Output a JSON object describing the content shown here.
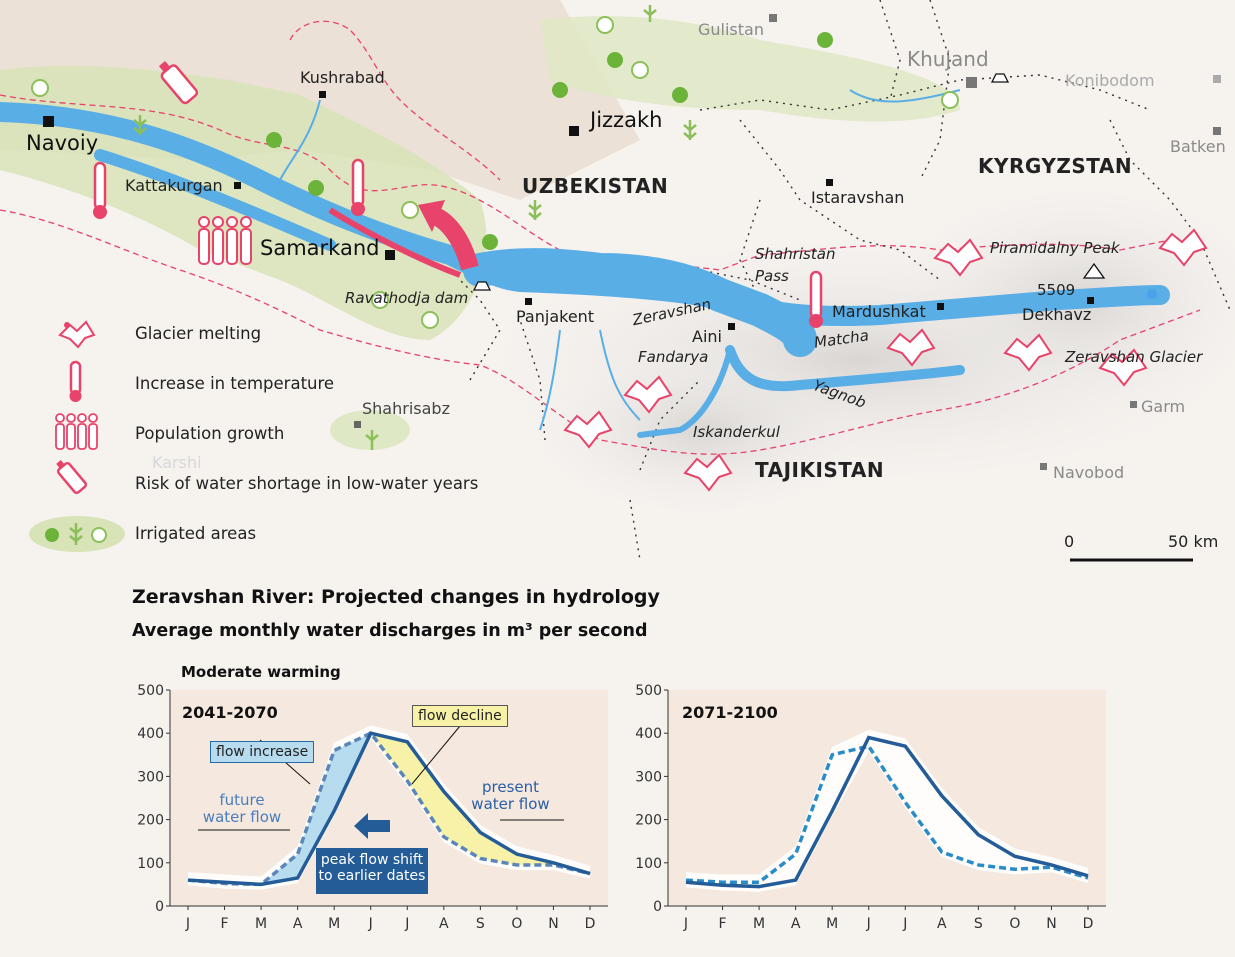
{
  "map": {
    "cities_large": {
      "navoiy": "Navoiy",
      "samarkand": "Samarkand",
      "jizzakh": "Jizzakh"
    },
    "cities": {
      "kushrabad": "Kushrabad",
      "kattakurgan": "Kattakurgan",
      "panjakent": "Panjakent",
      "aini": "Aini",
      "istaravshan": "Istaravshan",
      "mardushkat": "Mardushkat",
      "dekhavz": "Dekhavz",
      "shahrisabz": "Shahrisabz"
    },
    "cities_grey": {
      "gulistan": "Gulistan",
      "khujand": "Khujand",
      "konibodom": "Konibodom",
      "batken": "Batken",
      "garm": "Garm",
      "navobod": "Navobod",
      "karshi": "Karshi"
    },
    "countries": {
      "uzbekistan": "UZBEKISTAN",
      "kyrgyzstan": "KYRGYZSTAN",
      "tajikistan": "TAJIKISTAN"
    },
    "features": {
      "ravathodja_dam": "Ravathodja dam",
      "zeravshan": "Zeravshan",
      "shahristan": "Shahristan",
      "pass": "Pass",
      "fandarya": "Fandarya",
      "matcha": "Matcha",
      "yagnob": "Yagnob",
      "iskanderkul": "Iskanderkul",
      "piramidalny_peak": "Piramidalny Peak",
      "peak_height": "5509",
      "zeravshan_glacier": "Zeravshan Glacier"
    },
    "scale": {
      "zero": "0",
      "distance": "50 km"
    },
    "colors": {
      "river": "#5aaee6",
      "accent": "#e8436a",
      "irrigated": "#cfe0a4",
      "railway": "#333333"
    }
  },
  "legend": [
    {
      "icon": "glacier-icon",
      "label": "Glacier melting"
    },
    {
      "icon": "thermometer-icon",
      "label": "Increase in temperature"
    },
    {
      "icon": "population-icon",
      "label": "Population growth"
    },
    {
      "icon": "water-bottle-icon",
      "label": "Risk of water shortage in low-water years"
    },
    {
      "icon": "irrigated-area-icon",
      "label": "Irrigated areas"
    }
  ],
  "chart_section": {
    "title": "Zeravshan River: Projected changes in hydrology",
    "subtitle": "Average monthly water discharges in m³ per second",
    "scenario": "Moderate warming"
  },
  "chart_data": [
    {
      "type": "line",
      "period": "2041-2070",
      "categories": [
        "J",
        "F",
        "M",
        "A",
        "M",
        "J",
        "J",
        "A",
        "S",
        "O",
        "N",
        "D"
      ],
      "ylim": [
        0,
        500
      ],
      "yticks": [
        0,
        100,
        200,
        300,
        400,
        500
      ],
      "series": [
        {
          "name": "present water flow",
          "values": [
            60,
            55,
            50,
            65,
            220,
            400,
            380,
            265,
            170,
            120,
            100,
            75
          ]
        },
        {
          "name": "future water flow",
          "values": [
            60,
            52,
            50,
            120,
            360,
            400,
            290,
            160,
            110,
            95,
            95,
            75
          ]
        }
      ],
      "annotations": {
        "flow_increase": "flow increase",
        "flow_decline": "flow decline",
        "future": "future water flow",
        "present": "present water flow",
        "shift_line1": "peak flow shift",
        "shift_line2": "to earlier dates"
      }
    },
    {
      "type": "line",
      "period": "2071-2100",
      "categories": [
        "J",
        "F",
        "M",
        "A",
        "M",
        "J",
        "J",
        "A",
        "S",
        "O",
        "N",
        "D"
      ],
      "ylim": [
        0,
        500
      ],
      "yticks": [
        0,
        100,
        200,
        300,
        400,
        500
      ],
      "series": [
        {
          "name": "present water flow",
          "values": [
            55,
            48,
            45,
            60,
            220,
            390,
            370,
            255,
            165,
            115,
            95,
            70
          ]
        },
        {
          "name": "future water flow",
          "values": [
            60,
            55,
            55,
            120,
            350,
            370,
            240,
            125,
            95,
            85,
            90,
            65
          ]
        }
      ]
    }
  ]
}
